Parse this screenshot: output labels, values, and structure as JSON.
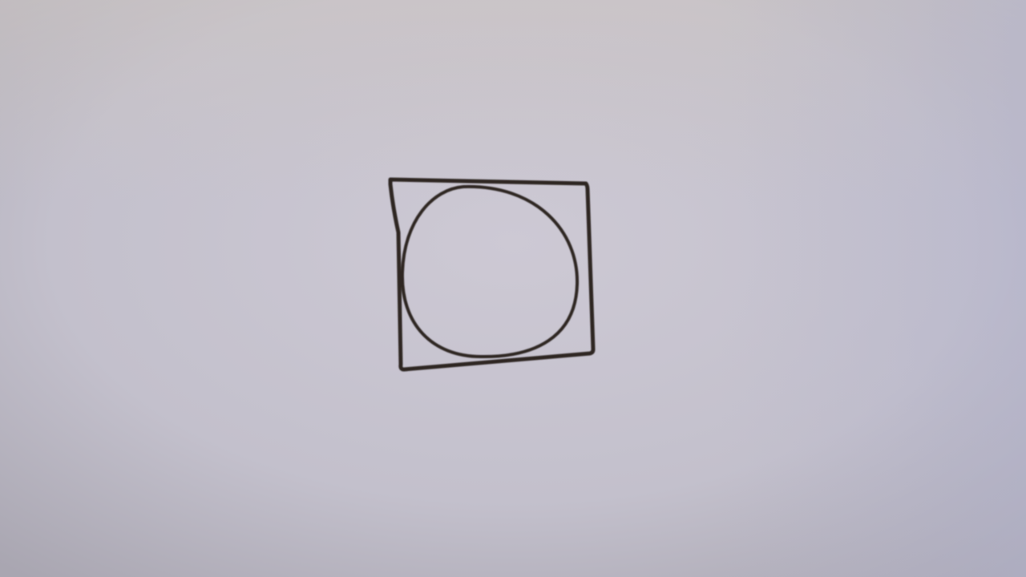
{
  "scene": {
    "paper_color": "#c7c3cf",
    "paper_shadow_color": "#a9a6b1",
    "ink_color": "#2e2824"
  },
  "drawing": {
    "shapes": [
      "square-outline",
      "circle-outline"
    ]
  }
}
